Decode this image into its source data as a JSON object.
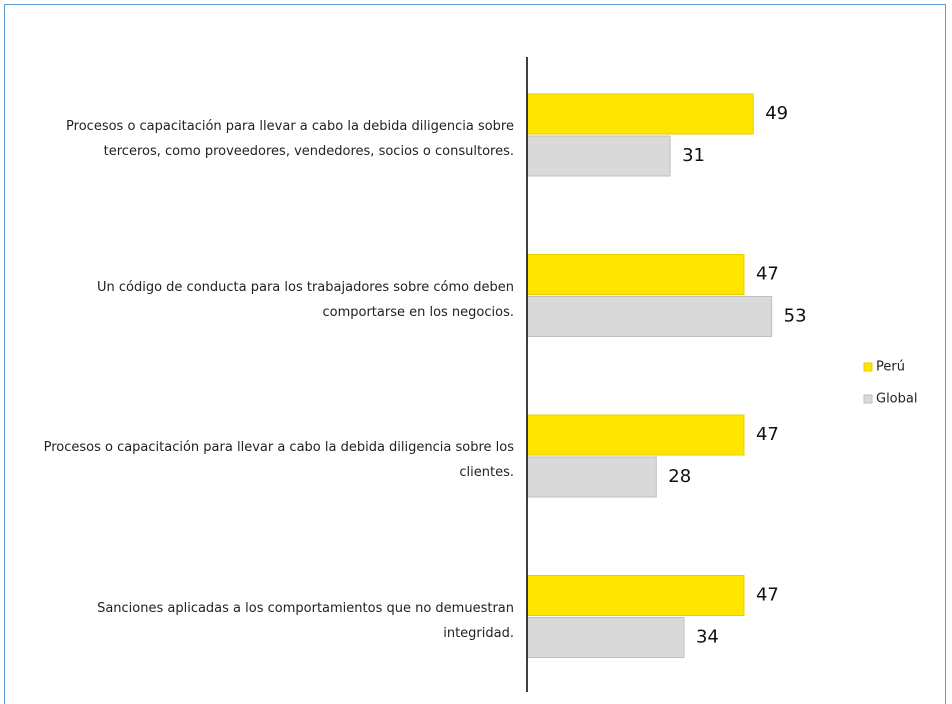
{
  "chart_data": {
    "type": "bar",
    "orientation": "horizontal",
    "categories": [
      "Procesos o capacitación para llevar a cabo la debida diligencia sobre terceros, como proveedores, vendedores, socios o consultores.",
      "Un código de conducta para los trabajadores sobre cómo deben comportarse en los negocios.",
      "Procesos o capacitación para llevar a cabo la debida diligencia sobre los clientes.",
      "Sanciones aplicadas a los comportamientos que no demuestran integridad."
    ],
    "series": [
      {
        "name": "Perú",
        "color": "#ffe600",
        "values": [
          49,
          47,
          47,
          47
        ]
      },
      {
        "name": "Global",
        "color": "#d9d9d9",
        "values": [
          31,
          53,
          28,
          34
        ]
      }
    ],
    "xlim": [
      0,
      60
    ],
    "legend": "right"
  }
}
